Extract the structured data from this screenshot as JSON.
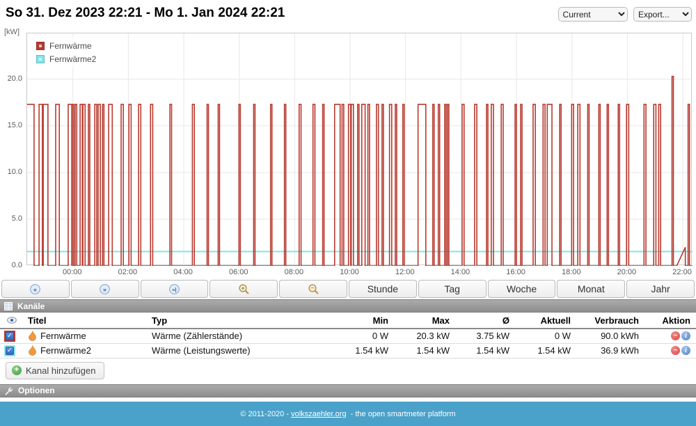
{
  "header": {
    "title": "So 31. Dez 2023 22:21 - Mo 1. Jan 2024 22:21",
    "view_select_value": "Current",
    "export_select_value": "Export..."
  },
  "chart": {
    "y_unit": "[kW]"
  },
  "chart_data": {
    "type": "line",
    "title": "Power over one day (So 31. Dez 2023 22:21 - Mo 1. Jan 2024 22:21)",
    "x_axis": {
      "span_hours": 24,
      "tick_hours": [
        1.65,
        3.65,
        5.65,
        7.65,
        9.65,
        11.65,
        13.65,
        15.65,
        17.65,
        19.65,
        21.65,
        23.65
      ],
      "tick_labels": [
        "00:00",
        "02:00",
        "04:00",
        "06:00",
        "08:00",
        "10:00",
        "12:00",
        "14:00",
        "16:00",
        "18:00",
        "20:00",
        "22:00"
      ]
    },
    "y_axis": {
      "min": 0,
      "max": 24.9,
      "ticks": [
        0,
        5,
        10,
        15,
        20
      ],
      "unit": "kW",
      "grid": true
    },
    "legend_position": "top-left",
    "series": [
      {
        "name": "Fernwärme",
        "color": "#b73a2f",
        "shape": "square-wave",
        "level_high_kw": 17.3,
        "level_low_kw": 0,
        "pulses_hours": [
          [
            0,
            0.25
          ],
          [
            0.43,
            0.55
          ],
          [
            0.58,
            0.75
          ],
          [
            1.03,
            1.16
          ],
          [
            1.48,
            1.61
          ],
          [
            1.63,
            1.68
          ],
          [
            1.73,
            1.79
          ],
          [
            1.91,
            1.99
          ],
          [
            2.01,
            2.09
          ],
          [
            2.21,
            2.26
          ],
          [
            2.44,
            2.51
          ],
          [
            2.56,
            2.64
          ],
          [
            2.72,
            2.77
          ],
          [
            2.94,
            3.07
          ],
          [
            3.39,
            3.47
          ],
          [
            3.67,
            3.75
          ],
          [
            4.02,
            4.1
          ],
          [
            4.45,
            4.53
          ],
          [
            5.15,
            5.21
          ],
          [
            5.96,
            6.03
          ],
          [
            6.49,
            6.54
          ],
          [
            6.89,
            6.94
          ],
          [
            7.64,
            7.69
          ],
          [
            8.17,
            8.22
          ],
          [
            8.78,
            8.83
          ],
          [
            9.28,
            9.33
          ],
          [
            9.81,
            9.88
          ],
          [
            10.31,
            10.38
          ],
          [
            10.66,
            10.71
          ],
          [
            11.09,
            11.29
          ],
          [
            11.36,
            11.42
          ],
          [
            11.59,
            11.67
          ],
          [
            11.69,
            11.77
          ],
          [
            11.92,
            11.97
          ],
          [
            12.07,
            12.19
          ],
          [
            12.29,
            12.35
          ],
          [
            12.6,
            12.67
          ],
          [
            12.8,
            12.85
          ],
          [
            13.07,
            13.15
          ],
          [
            13.28,
            13.33
          ],
          [
            13.55,
            13.6
          ],
          [
            14.1,
            14.38
          ],
          [
            14.63,
            14.68
          ],
          [
            14.83,
            14.88
          ],
          [
            15.06,
            15.11
          ],
          [
            15.16,
            15.21
          ],
          [
            15.69,
            15.76
          ],
          [
            16.14,
            16.22
          ],
          [
            16.57,
            16.62
          ],
          [
            16.74,
            16.82
          ],
          [
            17.1,
            17.17
          ],
          [
            17.6,
            17.65
          ],
          [
            17.8,
            17.85
          ],
          [
            18.25,
            18.33
          ],
          [
            18.61,
            18.68
          ],
          [
            18.76,
            18.93
          ],
          [
            19.21,
            19.26
          ],
          [
            19.64,
            19.71
          ],
          [
            19.86,
            19.94
          ],
          [
            20.22,
            20.27
          ],
          [
            20.62,
            20.67
          ],
          [
            20.92,
            20.97
          ],
          [
            21.32,
            21.37
          ],
          [
            21.62,
            21.7
          ],
          [
            22.25,
            22.32
          ],
          [
            22.6,
            22.68
          ],
          [
            22.78,
            22.85
          ],
          [
            23.84,
            23.89
          ]
        ],
        "spike": {
          "start_hour": 23.26,
          "end_hour": 23.31,
          "value_kw": 20.3
        },
        "ramp": {
          "start_hour": 23.43,
          "end_hour": 23.74,
          "peak_kw": 2.0
        }
      },
      {
        "name": "Fernwärme2",
        "color": "#7ee6ec",
        "shape": "constant",
        "constant_value_kw": 1.54
      }
    ]
  },
  "toolbar": {
    "nav_icons": [
      {
        "icon": "rewind-icon",
        "glyph": "«"
      },
      {
        "icon": "fast-forward-icon",
        "glyph": "»"
      },
      {
        "icon": "skip-to-end-icon",
        "glyph": "»|"
      },
      {
        "icon": "zoom-in-icon",
        "glyph": "+"
      },
      {
        "icon": "zoom-out-icon",
        "glyph": "−"
      }
    ],
    "ranges": [
      "Stunde",
      "Tag",
      "Woche",
      "Monat",
      "Jahr"
    ]
  },
  "channels": {
    "section_title": "Kanäle",
    "columns": {
      "title": "Titel",
      "type": "Typ",
      "min": "Min",
      "max": "Max",
      "avg": "Ø",
      "current": "Aktuell",
      "consumption": "Verbrauch",
      "action": "Aktion"
    },
    "rows": [
      {
        "checked": true,
        "color": "#b73a2f",
        "title": "Fernwärme",
        "type": "Wärme (Zählerstände)",
        "min": "0 W",
        "max": "20.3 kW",
        "avg": "3.75 kW",
        "current": "0 W",
        "consumption": "90.0 kWh"
      },
      {
        "checked": true,
        "color": "#8debf0",
        "title": "Fernwärme2",
        "type": "Wärme (Leistungswerte)",
        "min": "1.54 kW",
        "max": "1.54 kW",
        "avg": "1.54 kW",
        "current": "1.54 kW",
        "consumption": "36.9 kWh"
      }
    ],
    "add_button_label": "Kanal hinzufügen",
    "check_glyph": "✓"
  },
  "options": {
    "section_title": "Optionen"
  },
  "footer": {
    "prefix": "© 2011-2020 - ",
    "link_text": "volkszaehler.org",
    "suffix": " - the open smartmeter platform"
  }
}
